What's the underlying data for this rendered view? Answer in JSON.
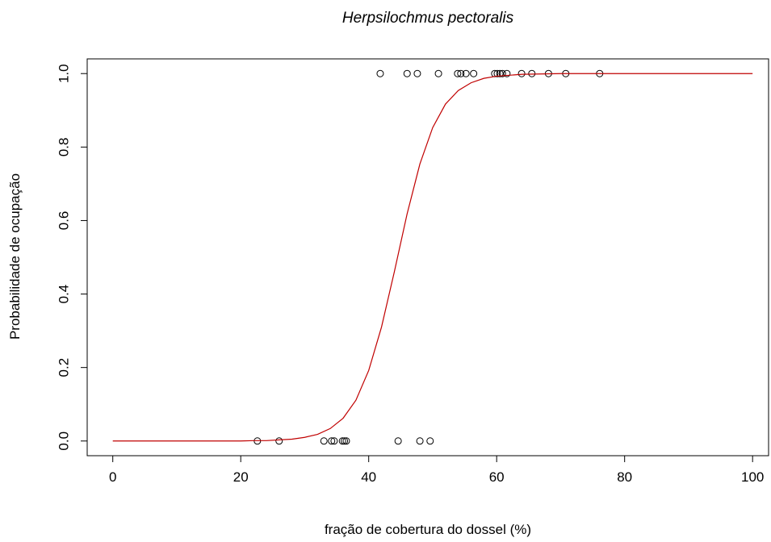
{
  "chart_data": {
    "type": "scatter",
    "title": "Herpsilochmus pectoralis",
    "xlabel": "fração de cobertura do dossel (%)",
    "ylabel": "Probabilidade de ocupação",
    "xlim": [
      -4,
      102.5
    ],
    "ylim": [
      -0.04,
      1.04
    ],
    "xticks": [
      0,
      20,
      40,
      60,
      80,
      100
    ],
    "yticks": [
      {
        "value": 0,
        "label": "0.0"
      },
      {
        "value": 0.2,
        "label": "0.2"
      },
      {
        "value": 0.4,
        "label": "0.4"
      },
      {
        "value": 0.6,
        "label": "0.6"
      },
      {
        "value": 0.8,
        "label": "0.8"
      },
      {
        "value": 1,
        "label": "1.0"
      }
    ],
    "grid": false,
    "series": [
      {
        "type": "scatter",
        "color": "#000000",
        "x": [
          41.8,
          46.0,
          47.6,
          50.9,
          53.9,
          54.4,
          55.2,
          56.4,
          59.7,
          60.1,
          60.5,
          60.9,
          61.6,
          63.9,
          65.5,
          68.1,
          70.8,
          76.1,
          22.6,
          26.0,
          33.0,
          34.2,
          34.6,
          35.9,
          36.2,
          36.5,
          44.6,
          48.0,
          49.6
        ],
        "values": [
          1,
          1,
          1,
          1,
          1,
          1,
          1,
          1,
          1,
          1,
          1,
          1,
          1,
          1,
          1,
          1,
          1,
          1,
          0,
          0,
          0,
          0,
          0,
          0,
          0,
          0,
          0,
          0,
          0
        ]
      },
      {
        "type": "line",
        "color": "#c00000",
        "x": [
          0,
          10,
          20,
          22,
          24,
          26,
          28,
          30,
          32,
          34,
          36,
          38,
          40,
          42,
          44,
          46,
          48,
          50,
          52,
          54,
          56,
          58,
          60,
          64,
          70,
          80,
          90,
          100
        ],
        "values": [
          0,
          0,
          0,
          0.001,
          0.001,
          0.003,
          0.005,
          0.01,
          0.018,
          0.034,
          0.062,
          0.111,
          0.192,
          0.31,
          0.46,
          0.618,
          0.754,
          0.853,
          0.917,
          0.954,
          0.975,
          0.987,
          0.993,
          0.998,
          1,
          1,
          1,
          1
        ]
      }
    ]
  }
}
